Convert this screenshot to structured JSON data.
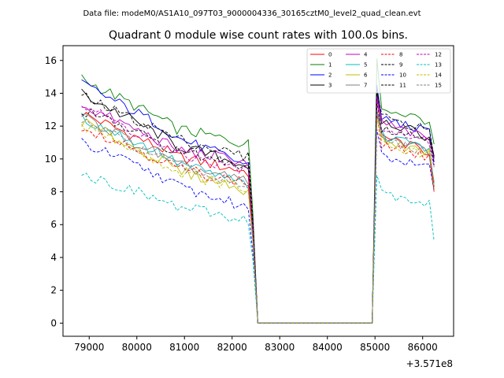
{
  "figure": {
    "suptitle": "Data file: modeM0/AS1A10_097T03_9000004336_30165cztM0_level2_quad_clean.evt"
  },
  "chart_data": {
    "type": "line",
    "title": "Quadrant 0 module wise count rates with 100.0s bins.",
    "xlabel": "",
    "ylabel": "",
    "x_offset_label": "+3.571e8",
    "xlim": [
      78450,
      86650
    ],
    "ylim": [
      -0.8,
      16.9
    ],
    "xticks": [
      79000,
      80000,
      81000,
      82000,
      83000,
      84000,
      85000,
      86000
    ],
    "xtick_labels": [
      "79000",
      "80000",
      "81000",
      "82000",
      "83000",
      "84000",
      "85000",
      "86000"
    ],
    "yticks": [
      0,
      2,
      4,
      6,
      8,
      10,
      12,
      14,
      16
    ],
    "ytick_labels": [
      "0",
      "2",
      "4",
      "6",
      "8",
      "10",
      "12",
      "14",
      "16"
    ],
    "legend_position": "top-right",
    "segments": [
      {
        "start": 78840,
        "n": 38,
        "step": 100
      },
      {
        "start": 82640,
        "n": 23,
        "step": 100
      },
      {
        "start": 84940,
        "n": 14,
        "step": 100
      }
    ],
    "series": [
      {
        "name": "0",
        "color": "#ff0000",
        "dash": false,
        "a": [
          12.8,
          10.3,
          9.2
        ],
        "b": [
          13.8,
          11.5,
          10.4,
          8.0
        ]
      },
      {
        "name": "1",
        "color": "#008000",
        "dash": false,
        "a": [
          14.9,
          12.0,
          10.9
        ],
        "b": [
          16.1,
          13.2,
          12.3,
          10.9
        ]
      },
      {
        "name": "2",
        "color": "#0000ff",
        "dash": false,
        "a": [
          14.6,
          11.6,
          9.6
        ],
        "b": [
          14.5,
          12.6,
          11.6,
          9.8
        ]
      },
      {
        "name": "3",
        "color": "#000000",
        "dash": false,
        "a": [
          14.0,
          11.0,
          9.6
        ],
        "b": [
          14.1,
          12.5,
          11.3,
          10.2
        ]
      },
      {
        "name": "4",
        "color": "#bf00bf",
        "dash": false,
        "a": [
          13.3,
          10.7,
          9.8
        ],
        "b": [
          13.8,
          12.3,
          11.2,
          10.0
        ]
      },
      {
        "name": "5",
        "color": "#00bfbf",
        "dash": false,
        "a": [
          12.5,
          10.0,
          8.4
        ],
        "b": [
          13.0,
          11.6,
          10.6,
          8.5
        ]
      },
      {
        "name": "6",
        "color": "#bfbf00",
        "dash": false,
        "a": [
          12.3,
          9.5,
          8.1
        ],
        "b": [
          12.8,
          11.2,
          10.4,
          8.3
        ]
      },
      {
        "name": "7",
        "color": "#808080",
        "dash": false,
        "a": [
          12.6,
          9.8,
          8.6
        ],
        "b": [
          13.0,
          11.4,
          10.5,
          8.6
        ]
      },
      {
        "name": "8",
        "color": "#ff0000",
        "dash": true,
        "a": [
          12.0,
          9.6,
          8.5
        ],
        "b": [
          12.7,
          11.0,
          10.1,
          8.3
        ]
      },
      {
        "name": "9",
        "color": "#000000",
        "dash": true,
        "a": [
          13.0,
          10.6,
          9.6
        ],
        "b": [
          13.5,
          12.0,
          11.2,
          9.6
        ]
      },
      {
        "name": "10",
        "color": "#0000ff",
        "dash": true,
        "a": [
          11.0,
          8.6,
          7.0
        ],
        "b": [
          11.8,
          10.3,
          9.4,
          8.1
        ]
      },
      {
        "name": "11",
        "color": "#000000",
        "dash": true,
        "a": [
          13.8,
          11.4,
          10.1
        ],
        "b": [
          14.2,
          12.6,
          11.8,
          10.1
        ]
      },
      {
        "name": "12",
        "color": "#bf00bf",
        "dash": true,
        "a": [
          13.3,
          10.4,
          9.3
        ],
        "b": [
          13.7,
          12.0,
          11.0,
          9.5
        ]
      },
      {
        "name": "13",
        "color": "#00bfbf",
        "dash": true,
        "a": [
          9.1,
          7.2,
          6.3
        ],
        "b": [
          9.0,
          8.0,
          7.2,
          5.0
        ]
      },
      {
        "name": "14",
        "color": "#bfbf00",
        "dash": true,
        "a": [
          12.1,
          9.4,
          8.1
        ],
        "b": [
          12.5,
          11.0,
          10.2,
          8.2
        ]
      },
      {
        "name": "15",
        "color": "#808080",
        "dash": true,
        "a": [
          12.3,
          9.7,
          8.4
        ],
        "b": [
          12.8,
          11.2,
          10.4,
          8.6
        ]
      }
    ]
  }
}
